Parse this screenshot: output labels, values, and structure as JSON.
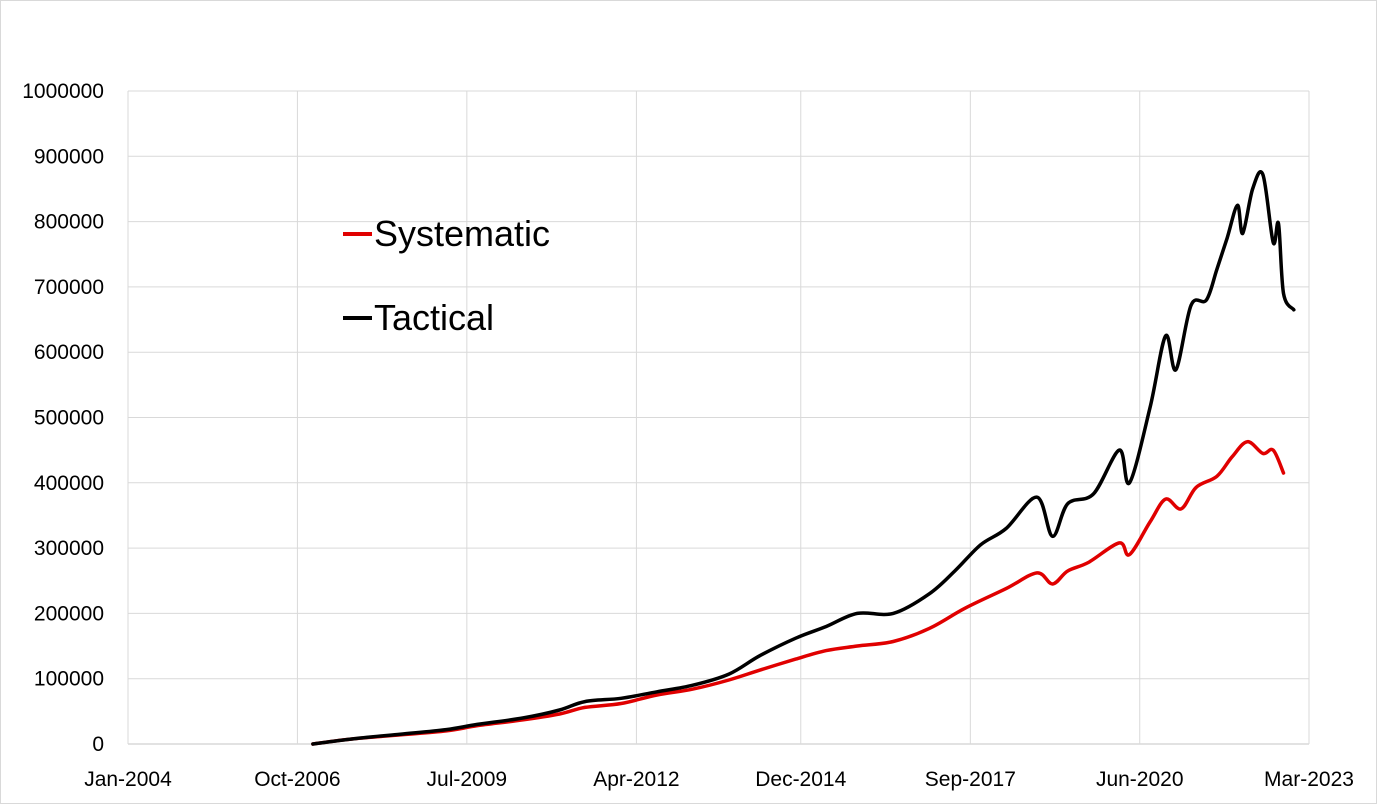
{
  "chart_data": {
    "type": "line",
    "title": "",
    "xlabel": "",
    "ylabel": "",
    "x_axis": {
      "type": "date",
      "range": [
        "2004-01-01",
        "2023-03-01"
      ],
      "tick_labels": [
        "Jan-2004",
        "Oct-2006",
        "Jul-2009",
        "Apr-2012",
        "Dec-2014",
        "Sep-2017",
        "Jun-2020",
        "Mar-2023"
      ],
      "tick_dates": [
        "2004-01-01",
        "2006-10-01",
        "2009-07-01",
        "2012-04-01",
        "2014-12-01",
        "2017-09-01",
        "2020-06-01",
        "2023-03-01"
      ]
    },
    "y_axis": {
      "range": [
        0,
        1000000
      ],
      "tick_labels": [
        "0",
        "100000",
        "200000",
        "300000",
        "400000",
        "500000",
        "600000",
        "700000",
        "800000",
        "900000",
        "1000000"
      ],
      "tick_values": [
        0,
        100000,
        200000,
        300000,
        400000,
        500000,
        600000,
        700000,
        800000,
        900000,
        1000000
      ]
    },
    "grid": true,
    "legend": {
      "position": "upper-left"
    },
    "series": [
      {
        "name": "Systematic",
        "color": "#e00000",
        "points": [
          [
            "2007-01-01",
            0
          ],
          [
            "2007-09-01",
            8000
          ],
          [
            "2008-06-01",
            14000
          ],
          [
            "2009-03-01",
            20000
          ],
          [
            "2009-09-01",
            28000
          ],
          [
            "2010-06-01",
            37000
          ],
          [
            "2011-01-01",
            46000
          ],
          [
            "2011-06-01",
            56000
          ],
          [
            "2012-01-01",
            62000
          ],
          [
            "2012-08-01",
            75000
          ],
          [
            "2013-03-01",
            84000
          ],
          [
            "2013-10-01",
            98000
          ],
          [
            "2014-04-01",
            113000
          ],
          [
            "2014-11-01",
            130000
          ],
          [
            "2015-05-01",
            143000
          ],
          [
            "2015-11-01",
            150000
          ],
          [
            "2016-06-01",
            157000
          ],
          [
            "2017-01-01",
            177000
          ],
          [
            "2017-08-01",
            208000
          ],
          [
            "2018-04-01",
            238000
          ],
          [
            "2018-10-01",
            262000
          ],
          [
            "2019-01-01",
            245000
          ],
          [
            "2019-04-01",
            265000
          ],
          [
            "2019-08-01",
            278000
          ],
          [
            "2020-02-01",
            308000
          ],
          [
            "2020-04-01",
            290000
          ],
          [
            "2020-08-01",
            340000
          ],
          [
            "2020-11-01",
            375000
          ],
          [
            "2021-02-01",
            360000
          ],
          [
            "2021-05-01",
            393000
          ],
          [
            "2021-09-01",
            410000
          ],
          [
            "2021-12-01",
            440000
          ],
          [
            "2022-03-01",
            463000
          ],
          [
            "2022-06-01",
            445000
          ],
          [
            "2022-08-01",
            450000
          ],
          [
            "2022-10-01",
            415000
          ]
        ]
      },
      {
        "name": "Tactical",
        "color": "#000000",
        "points": [
          [
            "2007-01-01",
            0
          ],
          [
            "2007-09-01",
            8000
          ],
          [
            "2008-06-01",
            15000
          ],
          [
            "2009-03-01",
            22000
          ],
          [
            "2009-09-01",
            30000
          ],
          [
            "2010-06-01",
            40000
          ],
          [
            "2011-01-01",
            52000
          ],
          [
            "2011-06-01",
            65000
          ],
          [
            "2012-01-01",
            70000
          ],
          [
            "2012-08-01",
            80000
          ],
          [
            "2013-03-01",
            90000
          ],
          [
            "2013-10-01",
            107000
          ],
          [
            "2014-04-01",
            135000
          ],
          [
            "2014-11-01",
            162000
          ],
          [
            "2015-05-01",
            180000
          ],
          [
            "2015-11-01",
            200000
          ],
          [
            "2016-06-01",
            200000
          ],
          [
            "2017-01-01",
            230000
          ],
          [
            "2017-06-01",
            265000
          ],
          [
            "2017-11-01",
            305000
          ],
          [
            "2018-04-01",
            330000
          ],
          [
            "2018-10-01",
            378000
          ],
          [
            "2019-01-01",
            318000
          ],
          [
            "2019-04-01",
            368000
          ],
          [
            "2019-09-01",
            383000
          ],
          [
            "2020-02-01",
            450000
          ],
          [
            "2020-04-01",
            400000
          ],
          [
            "2020-08-01",
            515000
          ],
          [
            "2020-11-01",
            625000
          ],
          [
            "2021-01-01",
            573000
          ],
          [
            "2021-04-01",
            672000
          ],
          [
            "2021-07-01",
            680000
          ],
          [
            "2021-09-01",
            727000
          ],
          [
            "2021-11-01",
            775000
          ],
          [
            "2022-01-01",
            825000
          ],
          [
            "2022-02-01",
            782000
          ],
          [
            "2022-04-01",
            850000
          ],
          [
            "2022-06-01",
            872000
          ],
          [
            "2022-08-01",
            768000
          ],
          [
            "2022-09-01",
            797000
          ],
          [
            "2022-10-01",
            690000
          ],
          [
            "2022-12-01",
            665000
          ]
        ]
      }
    ]
  }
}
